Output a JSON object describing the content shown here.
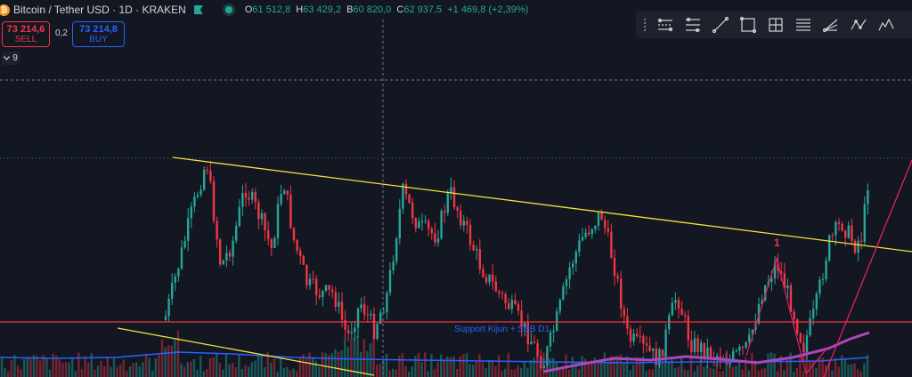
{
  "header": {
    "logo_glyph": "₿",
    "title": "Bitcoin / Tether USD · 1D · KRAKEN",
    "ohlc": [
      {
        "key": "O",
        "value": "61 512,8"
      },
      {
        "key": "H",
        "value": "63 429,2"
      },
      {
        "key": "B",
        "value": "60 820,0"
      },
      {
        "key": "C",
        "value": "62 937,5"
      }
    ],
    "change": "+1 469,8 (+2,39%)"
  },
  "trade": {
    "sell_price": "73 214,6",
    "sell_label": "SELL",
    "spread": "0,2",
    "buy_price": "73 214,8",
    "buy_label": "BUY"
  },
  "indicators": {
    "collapse_count": "9"
  },
  "toolbar": {
    "tools": [
      "parallel-channel-icon",
      "regression-trend-icon",
      "trend-line-icon",
      "rectangle-icon",
      "gann-box-icon",
      "fib-retracement-icon",
      "fib-fan-icon",
      "abcd-pattern-icon",
      "elliott-wave-icon"
    ]
  },
  "annotations": {
    "support_label": "Support Kijun + SSB D1",
    "wave_label": "1"
  },
  "colors": {
    "background": "#131722",
    "up": "#26a69a",
    "down": "#f23645",
    "trendline": "#f3e13a",
    "support_line": "#f23645",
    "ma_purple": "#ab47bc",
    "ma_blue": "#2962ff"
  }
}
